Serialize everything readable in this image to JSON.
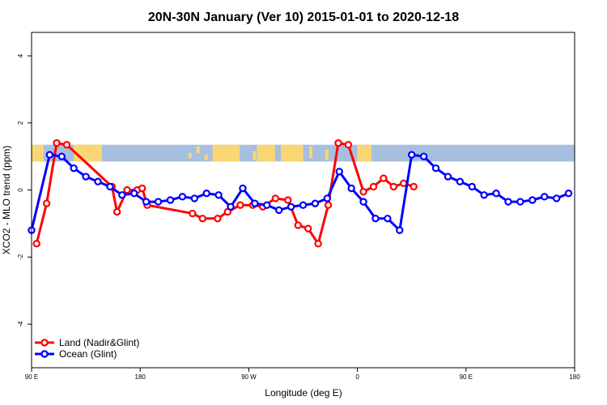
{
  "chart_data": {
    "type": "line",
    "title": "20N-30N January (Ver 10)   2015-01-01 to 2020-12-18",
    "xlabel": "Longitude (deg E)",
    "ylabel": "XCO2 - MLO trend (ppm)",
    "xlim": [
      -90,
      180
    ],
    "ylim": [
      -5.3,
      4.7
    ],
    "x_ticks": [
      -90,
      -36,
      18,
      72,
      126,
      180
    ],
    "x_tick_labels": [
      "90 E",
      "180",
      "90 W",
      "0",
      "90 E",
      "180"
    ],
    "y_ticks": [
      -4,
      -2,
      0,
      2,
      4
    ],
    "y_tick_labels": [
      "-4",
      "-2",
      "0",
      "2",
      "4"
    ],
    "grid": false,
    "legend_position": "bottom-left",
    "map_band": {
      "y_range": [
        0.85,
        1.35
      ],
      "ocean_color": "#a7bfdf",
      "land_color": "#fad774"
    },
    "series": [
      {
        "name": "Land (Nadir&Glint)",
        "color": "#ff0000",
        "x": [
          -87.5,
          -82.5,
          -77.5,
          -72.5,
          -50,
          -47.5,
          -42.5,
          -37.5,
          -35,
          -32.5,
          -10,
          -5,
          2.5,
          7.5,
          13.75,
          20,
          25,
          31.25,
          37.5,
          42.5,
          47.5,
          52.5,
          57.5,
          62.5,
          67.5,
          75,
          80,
          85,
          90,
          95,
          100
        ],
        "y": [
          -1.6,
          -0.4,
          1.4,
          1.35,
          0.1,
          -0.65,
          0.0,
          0.0,
          0.05,
          -0.45,
          -0.7,
          -0.85,
          -0.85,
          -0.65,
          -0.45,
          -0.45,
          -0.5,
          -0.25,
          -0.3,
          -1.05,
          -1.15,
          -1.6,
          -0.45,
          1.4,
          1.35,
          -0.05,
          0.1,
          0.35,
          0.1,
          0.2,
          0.1
        ],
        "y_note": "unused"
      },
      {
        "name": "Ocean (Glint)",
        "color": "#0000ff",
        "x": [
          -90,
          -81,
          -75,
          -69,
          -63,
          -57,
          -51,
          -45,
          -39,
          -33,
          -27,
          -21,
          -15,
          -9,
          -3,
          3,
          9,
          15,
          21,
          27,
          33,
          39,
          45,
          51,
          57,
          63,
          69,
          75,
          81,
          87,
          93,
          99,
          105,
          111,
          117,
          123,
          129,
          135,
          141,
          147,
          153,
          159,
          165,
          171,
          177
        ],
        "y": [
          -1.2,
          1.05,
          1.0,
          0.65,
          0.4,
          0.25,
          0.1,
          -0.15,
          -0.1,
          -0.35,
          -0.35,
          -0.3,
          -0.2,
          -0.25,
          -0.1,
          -0.15,
          -0.5,
          0.05,
          -0.4,
          -0.45,
          -0.6,
          -0.5,
          -0.45,
          -0.4,
          -0.25,
          0.55,
          0.05,
          -0.35,
          -0.85,
          -0.85,
          -1.2,
          1.05,
          1.0,
          0.65,
          0.4,
          0.25,
          0.1,
          -0.15,
          -0.1,
          -0.35,
          -0.35,
          -0.3,
          -0.2,
          -0.25,
          -0.1
        ]
      }
    ]
  }
}
